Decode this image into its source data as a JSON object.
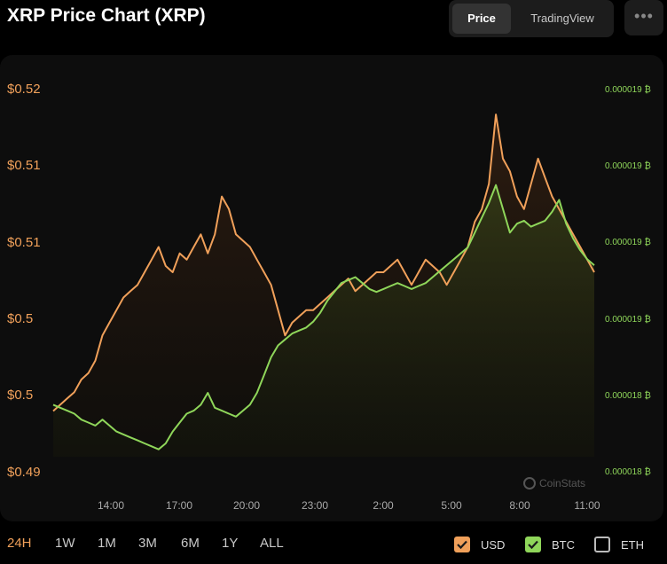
{
  "title": "XRP Price Chart (XRP)",
  "view_toggle": {
    "price": "Price",
    "tradingview": "TradingView"
  },
  "more_label": "•••",
  "watermark": "CoinStats",
  "ranges": [
    "24H",
    "1W",
    "1M",
    "3M",
    "6M",
    "1Y",
    "ALL"
  ],
  "active_range": "24H",
  "legend": [
    {
      "label": "USD",
      "checked": true,
      "color": "#f0a05a"
    },
    {
      "label": "BTC",
      "checked": true,
      "color": "#8fd65a"
    },
    {
      "label": "ETH",
      "checked": false,
      "color": "#bbbbbb"
    }
  ],
  "chart_data": {
    "type": "line",
    "x_ticks": [
      "14:00",
      "17:00",
      "20:00",
      "23:00",
      "2:00",
      "5:00",
      "8:00",
      "11:00"
    ],
    "y_left_ticks": [
      "$0.52",
      "$0.51",
      "$0.51",
      "$0.5",
      "$0.5",
      "$0.49"
    ],
    "y_right_ticks": [
      "0.000019 ₿",
      "0.000019 ₿",
      "0.000019 ₿",
      "0.000019 ₿",
      "0.000018 ₿",
      "0.000018 ₿"
    ],
    "grid": false,
    "series": [
      {
        "name": "USD",
        "color": "#f0a05a",
        "values": [
          0.496,
          0.4965,
          0.497,
          0.4975,
          0.4985,
          0.499,
          0.5,
          0.502,
          0.503,
          0.504,
          0.505,
          0.5055,
          0.506,
          0.507,
          0.508,
          0.509,
          0.5075,
          0.507,
          0.5085,
          0.508,
          0.509,
          0.51,
          0.5085,
          0.51,
          0.513,
          0.512,
          0.51,
          0.5095,
          0.509,
          0.508,
          0.507,
          0.506,
          0.504,
          0.502,
          0.503,
          0.5035,
          0.504,
          0.504,
          0.5045,
          0.505,
          0.5055,
          0.506,
          0.5065,
          0.5055,
          0.506,
          0.5065,
          0.507,
          0.507,
          0.5075,
          0.508,
          0.507,
          0.506,
          0.507,
          0.508,
          0.5075,
          0.507,
          0.506,
          0.507,
          0.508,
          0.509,
          0.511,
          0.512,
          0.514,
          0.5195,
          0.516,
          0.515,
          0.513,
          0.512,
          0.514,
          0.516,
          0.5145,
          0.513,
          0.512,
          0.511,
          0.51,
          0.509,
          0.508,
          0.507
        ]
      },
      {
        "name": "BTC",
        "color": "#8fd65a",
        "values": [
          1.852e-05,
          1.851e-05,
          1.85e-05,
          1.849e-05,
          1.847e-05,
          1.846e-05,
          1.845e-05,
          1.847e-05,
          1.845e-05,
          1.843e-05,
          1.842e-05,
          1.841e-05,
          1.84e-05,
          1.839e-05,
          1.838e-05,
          1.837e-05,
          1.839e-05,
          1.843e-05,
          1.846e-05,
          1.849e-05,
          1.85e-05,
          1.852e-05,
          1.856e-05,
          1.851e-05,
          1.85e-05,
          1.849e-05,
          1.848e-05,
          1.85e-05,
          1.852e-05,
          1.856e-05,
          1.862e-05,
          1.868e-05,
          1.872e-05,
          1.874e-05,
          1.876e-05,
          1.877e-05,
          1.878e-05,
          1.88e-05,
          1.883e-05,
          1.887e-05,
          1.89e-05,
          1.893e-05,
          1.894e-05,
          1.895e-05,
          1.893e-05,
          1.891e-05,
          1.89e-05,
          1.891e-05,
          1.892e-05,
          1.893e-05,
          1.892e-05,
          1.891e-05,
          1.892e-05,
          1.893e-05,
          1.895e-05,
          1.897e-05,
          1.899e-05,
          1.901e-05,
          1.903e-05,
          1.905e-05,
          1.91e-05,
          1.915e-05,
          1.92e-05,
          1.926e-05,
          1.918e-05,
          1.91e-05,
          1.913e-05,
          1.914e-05,
          1.912e-05,
          1.913e-05,
          1.914e-05,
          1.917e-05,
          1.921e-05,
          1.913e-05,
          1.908e-05,
          1.904e-05,
          1.901e-05,
          1.899e-05
        ]
      }
    ]
  }
}
